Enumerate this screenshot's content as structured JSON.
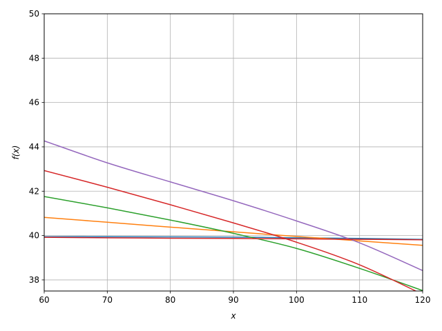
{
  "chart_data": {
    "type": "line",
    "title": "",
    "xlabel": "x",
    "ylabel": "f(x)",
    "xlim": [
      60,
      120
    ],
    "ylim": [
      37.5,
      50
    ],
    "xticks": [
      60,
      70,
      80,
      90,
      100,
      110,
      120
    ],
    "yticks": [
      38,
      40,
      42,
      44,
      46,
      48,
      50
    ],
    "grid": true,
    "legend": "none",
    "series": [
      {
        "color": "#1f77b4",
        "x": [
          60,
          70,
          80,
          90,
          100,
          110,
          120
        ],
        "y": [
          39.95,
          39.95,
          39.94,
          39.93,
          39.9,
          39.87,
          39.83
        ]
      },
      {
        "color": "#ff7f0e",
        "x": [
          60,
          70,
          80,
          90,
          100,
          110,
          120
        ],
        "y": [
          40.82,
          40.6,
          40.38,
          40.17,
          39.96,
          39.76,
          39.56
        ]
      },
      {
        "color": "#2ca02c",
        "x": [
          60,
          70,
          80,
          90,
          100,
          110,
          120
        ],
        "y": [
          41.76,
          41.25,
          40.7,
          40.1,
          39.42,
          38.52,
          37.52
        ]
      },
      {
        "color": "#d62728",
        "x": [
          60,
          70,
          80,
          90,
          100,
          110,
          120
        ],
        "y": [
          42.93,
          42.18,
          41.39,
          40.57,
          39.7,
          38.68,
          37.35
        ]
      },
      {
        "color": "#9467bd",
        "x": [
          60,
          70,
          80,
          90,
          100,
          110,
          120
        ],
        "y": [
          44.27,
          43.28,
          42.42,
          41.57,
          40.66,
          39.67,
          38.42
        ]
      },
      {
        "color": "#d62728",
        "x": [
          60,
          70,
          80,
          90,
          100,
          110,
          120
        ],
        "y": [
          39.92,
          39.9,
          39.88,
          39.87,
          39.85,
          39.83,
          39.81
        ]
      }
    ]
  }
}
